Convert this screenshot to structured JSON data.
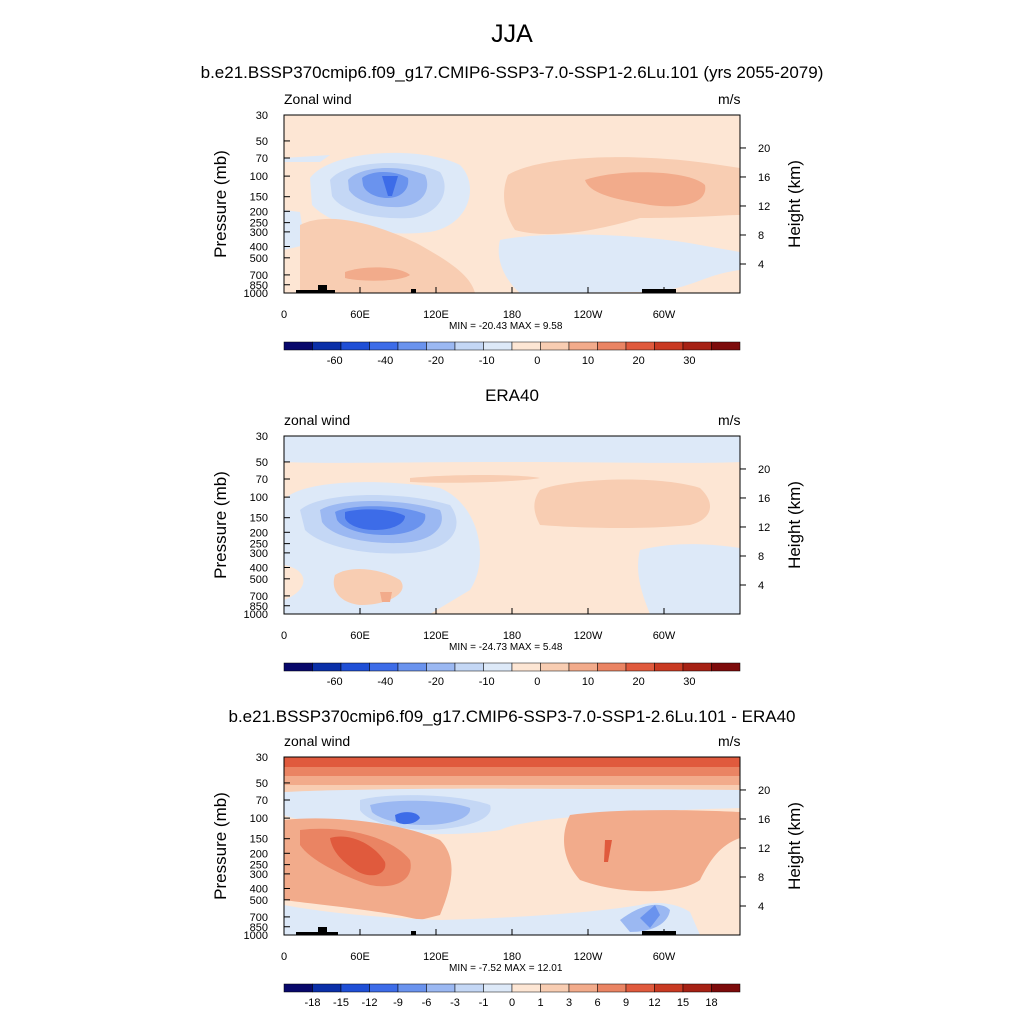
{
  "figure": {
    "title": "JJA",
    "case_title": "b.e21.BSSP370cmip6.f09_g17.CMIP6-SSP3-7.0-SSP1-2.6Lu.101 (yrs 2055-2079)"
  },
  "panels": [
    {
      "title": "",
      "left_label": "Zonal wind",
      "right_label": "m/s",
      "minmax": "MIN = -20.43  MAX =   9.58",
      "colorbar_ticks": [
        "-60",
        "-40",
        "-20",
        "-10",
        "0",
        "10",
        "20",
        "30"
      ],
      "topography": true
    },
    {
      "title": "ERA40",
      "left_label": "zonal wind",
      "right_label": "m/s",
      "minmax": "MIN = -24.73  MAX =   5.48",
      "colorbar_ticks": [
        "-60",
        "-40",
        "-20",
        "-10",
        "0",
        "10",
        "20",
        "30"
      ],
      "topography": false
    },
    {
      "title": "b.e21.BSSP370cmip6.f09_g17.CMIP6-SSP3-7.0-SSP1-2.6Lu.101 - ERA40",
      "left_label": "zonal wind",
      "right_label": "m/s",
      "minmax": "MIN =  -7.52  MAX =  12.01",
      "colorbar_ticks": [
        "-18",
        "-15",
        "-12",
        "-9",
        "-6",
        "-3",
        "-1",
        "0",
        "1",
        "3",
        "6",
        "9",
        "12",
        "15",
        "18"
      ],
      "topography": true
    }
  ],
  "chart_data": [
    {
      "type": "heatmap",
      "title": "JJA",
      "subtitle": "b.e21.BSSP370cmip6.f09_g17.CMIP6-SSP3-7.0-SSP1-2.6Lu.101 (yrs 2055-2079)",
      "variable": "Zonal wind",
      "units": "m/s",
      "xlabel": "",
      "ylabel": "Pressure (mb)",
      "ylabel_right": "Height (km)",
      "x_ticks": [
        "0",
        "60E",
        "120E",
        "180",
        "120W",
        "60W"
      ],
      "y_ticks": [
        "30",
        "50",
        "70",
        "100",
        "150",
        "200",
        "250",
        "300",
        "400",
        "500",
        "700",
        "850",
        "1000"
      ],
      "y_right_ticks": [
        "20",
        "16",
        "12",
        "8",
        "4"
      ],
      "ylim": [
        1000,
        30
      ],
      "min": -20.43,
      "max": 9.58,
      "contour_levels": [
        -70,
        -60,
        -50,
        -40,
        -30,
        -20,
        -15,
        -10,
        -5,
        0,
        5,
        10,
        15,
        20,
        25,
        30,
        35
      ]
    },
    {
      "type": "heatmap",
      "title": "ERA40",
      "variable": "zonal wind",
      "units": "m/s",
      "xlabel": "",
      "ylabel": "Pressure (mb)",
      "ylabel_right": "Height (km)",
      "x_ticks": [
        "0",
        "60E",
        "120E",
        "180",
        "120W",
        "60W"
      ],
      "y_ticks": [
        "30",
        "50",
        "70",
        "100",
        "150",
        "200",
        "250",
        "300",
        "400",
        "500",
        "700",
        "850",
        "1000"
      ],
      "y_right_ticks": [
        "20",
        "16",
        "12",
        "8",
        "4"
      ],
      "ylim": [
        1000,
        30
      ],
      "min": -24.73,
      "max": 5.48,
      "contour_levels": [
        -70,
        -60,
        -50,
        -40,
        -30,
        -20,
        -15,
        -10,
        -5,
        0,
        5,
        10,
        15,
        20,
        25,
        30,
        35
      ]
    },
    {
      "type": "heatmap",
      "title": "b.e21.BSSP370cmip6.f09_g17.CMIP6-SSP3-7.0-SSP1-2.6Lu.101 - ERA40",
      "variable": "zonal wind",
      "units": "m/s",
      "xlabel": "",
      "ylabel": "Pressure (mb)",
      "ylabel_right": "Height (km)",
      "x_ticks": [
        "0",
        "60E",
        "120E",
        "180",
        "120W",
        "60W"
      ],
      "y_ticks": [
        "30",
        "50",
        "70",
        "100",
        "150",
        "200",
        "250",
        "300",
        "400",
        "500",
        "700",
        "850",
        "1000"
      ],
      "y_right_ticks": [
        "20",
        "16",
        "12",
        "8",
        "4"
      ],
      "ylim": [
        1000,
        30
      ],
      "min": -7.52,
      "max": 12.01,
      "contour_levels": [
        -21,
        -18,
        -15,
        -12,
        -9,
        -6,
        -3,
        -1,
        0,
        1,
        3,
        6,
        9,
        12,
        15,
        18,
        21
      ]
    }
  ],
  "axes_text": {
    "ylabel": "Pressure (mb)",
    "ylabel_right": "Height (km)",
    "x_ticks": [
      "0",
      "60E",
      "120E",
      "180",
      "120W",
      "60W"
    ],
    "y_ticks": [
      "30",
      "50",
      "70",
      "100",
      "150",
      "200",
      "250",
      "300",
      "400",
      "500",
      "700",
      "850",
      "1000"
    ],
    "y_right_ticks": [
      "20",
      "16",
      "12",
      "8",
      "4"
    ]
  },
  "colors": {
    "palette": [
      "#08086b",
      "#0a2fa8",
      "#1f4fd6",
      "#3d6ce8",
      "#6a93ee",
      "#9bb8f2",
      "#c4d7f5",
      "#dde9f8",
      "#fde6d4",
      "#f8cdb2",
      "#f2ab8b",
      "#ea8463",
      "#e05a3d",
      "#c93a22",
      "#a62114",
      "#7d0b0b"
    ],
    "background": "#fde6d4",
    "topography": "#000000"
  }
}
